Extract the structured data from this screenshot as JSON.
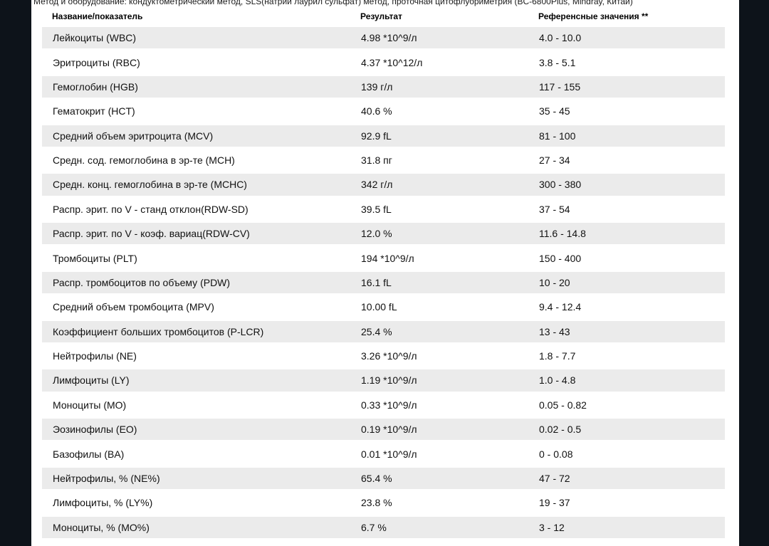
{
  "colors": {
    "viewer_background": "#0d131a",
    "page_background": "#ffffff",
    "row_stripe": "#ebebeb",
    "text": "#111111"
  },
  "doc": {
    "method_line": "Метод и оборудование: кондуктометрический метод, SLS(натрий лаурил сульфат) метод, проточная цитофлуориметрия (BC-6800Plus, Mindray, Китай)"
  },
  "table": {
    "columns": [
      "Название/показатель",
      "Результат",
      "Референсные значения **"
    ],
    "rows": [
      {
        "name": "Лейкоциты (WBC)",
        "result": "4.98 *10^9/л",
        "ref": "4.0 - 10.0"
      },
      {
        "name": "Эритроциты (RBC)",
        "result": "4.37 *10^12/л",
        "ref": "3.8 - 5.1"
      },
      {
        "name": "Гемоглобин (HGB)",
        "result": "139 г/л",
        "ref": "117 - 155"
      },
      {
        "name": "Гематокрит (HCT)",
        "result": "40.6 %",
        "ref": "35 - 45"
      },
      {
        "name": "Средний объем эритроцита (MCV)",
        "result": "92.9 fL",
        "ref": "81 - 100"
      },
      {
        "name": "Средн. сод. гемоглобина в эр-те (MCH)",
        "result": "31.8 пг",
        "ref": "27 - 34"
      },
      {
        "name": "Средн. конц. гемоглобина в эр-те (MCHC)",
        "result": "342 г/л",
        "ref": "300 - 380"
      },
      {
        "name": "Распр. эрит. по V - станд отклон(RDW-SD)",
        "result": "39.5 fL",
        "ref": "37 - 54"
      },
      {
        "name": "Распр. эрит. по V - коэф. вариац(RDW-CV)",
        "result": "12.0 %",
        "ref": "11.6 - 14.8"
      },
      {
        "name": "Тромбоциты (PLT)",
        "result": "194 *10^9/л",
        "ref": "150 - 400"
      },
      {
        "name": "Распр. тромбоцитов по объему (PDW)",
        "result": "16.1 fL",
        "ref": "10 - 20"
      },
      {
        "name": "Средний объем тромбоцита (MPV)",
        "result": "10.00 fL",
        "ref": "9.4 - 12.4"
      },
      {
        "name": "Коэффициент больших тромбоцитов (P-LCR)",
        "result": "25.4 %",
        "ref": "13 - 43"
      },
      {
        "name": "Нейтрофилы (NE)",
        "result": "3.26 *10^9/л",
        "ref": "1.8 - 7.7"
      },
      {
        "name": "Лимфоциты (LY)",
        "result": "1.19 *10^9/л",
        "ref": "1.0 - 4.8"
      },
      {
        "name": "Моноциты (MO)",
        "result": "0.33 *10^9/л",
        "ref": "0.05 - 0.82"
      },
      {
        "name": "Эозинофилы (EO)",
        "result": "0.19 *10^9/л",
        "ref": "0.02 - 0.5"
      },
      {
        "name": "Базофилы (BA)",
        "result": "0.01 *10^9/л",
        "ref": "0 - 0.08"
      },
      {
        "name": "Нейтрофилы, % (NE%)",
        "result": "65.4 %",
        "ref": "47 - 72"
      },
      {
        "name": "Лимфоциты, % (LY%)",
        "result": "23.8 %",
        "ref": "19 - 37"
      },
      {
        "name": "Моноциты, % (MO%)",
        "result": "6.7 %",
        "ref": "3 - 12"
      }
    ]
  }
}
